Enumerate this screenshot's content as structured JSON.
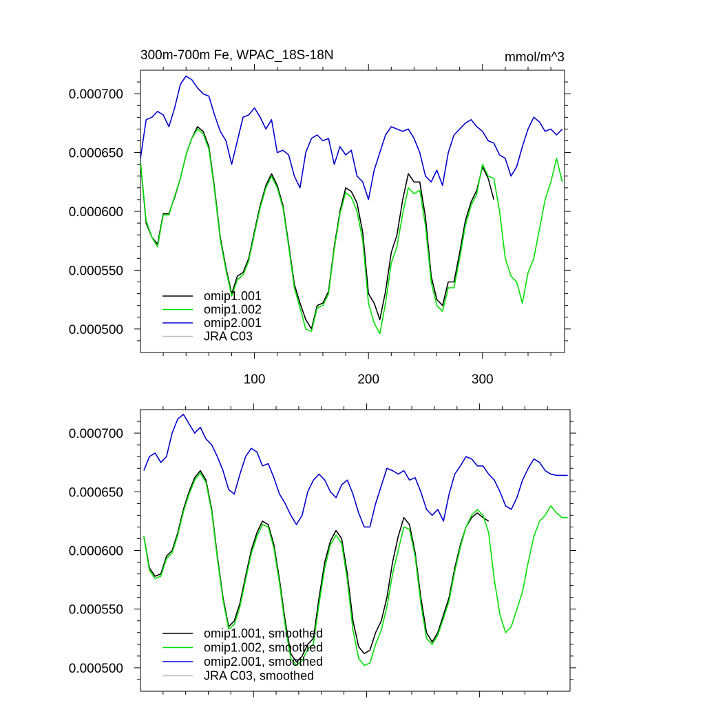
{
  "chart_data": [
    {
      "type": "line",
      "title": "300m-700m Fe, WPAC_18S-18N",
      "subtitle": "",
      "units": "mmol/m^3",
      "xlim": [
        0,
        372
      ],
      "ylim": [
        0.00048,
        0.00072
      ],
      "xticks": [
        100,
        200,
        300
      ],
      "xticklabels": [
        "100",
        "200",
        "300"
      ],
      "yticks": [
        0.0005,
        0.00055,
        0.0006,
        0.00065,
        0.0007
      ],
      "yticklabels": [
        "0.000500",
        "0.000550",
        "0.000600",
        "0.000650",
        "0.000700"
      ],
      "legend_position": "lower-left",
      "series": [
        {
          "name": "omip1.001",
          "color": "#000000",
          "x": [
            0,
            5,
            10,
            15,
            20,
            25,
            30,
            35,
            40,
            45,
            50,
            55,
            60,
            65,
            70,
            75,
            80,
            85,
            90,
            95,
            100,
            105,
            110,
            115,
            120,
            125,
            130,
            135,
            140,
            145,
            150,
            155,
            160,
            165,
            170,
            175,
            180,
            185,
            190,
            195,
            200,
            205,
            210,
            215,
            220,
            225,
            230,
            235,
            240,
            245,
            250,
            255,
            260,
            265,
            270,
            275,
            280,
            285,
            290,
            295,
            300,
            305,
            310
          ],
          "y": [
            0.000642,
            0.00059,
            0.000578,
            0.000572,
            0.000598,
            0.000598,
            0.000612,
            0.000628,
            0.000648,
            0.000662,
            0.000672,
            0.000668,
            0.000655,
            0.00062,
            0.000578,
            0.000552,
            0.00053,
            0.000545,
            0.000548,
            0.00056,
            0.000583,
            0.000605,
            0.000622,
            0.000632,
            0.000622,
            0.000605,
            0.000572,
            0.000538,
            0.000522,
            0.000508,
            0.0005,
            0.00052,
            0.000522,
            0.000532,
            0.00057,
            0.0006,
            0.00062,
            0.000617,
            0.000607,
            0.000582,
            0.00053,
            0.000522,
            0.000508,
            0.000532,
            0.000565,
            0.00058,
            0.00061,
            0.000632,
            0.000625,
            0.000625,
            0.000595,
            0.000545,
            0.000525,
            0.00052,
            0.00054,
            0.00054,
            0.000565,
            0.000592,
            0.000608,
            0.000618,
            0.000638,
            0.000628,
            0.00061
          ]
        },
        {
          "name": "omip1.002",
          "color": "#00e000",
          "x": [
            0,
            5,
            10,
            15,
            20,
            25,
            30,
            35,
            40,
            45,
            50,
            55,
            60,
            65,
            70,
            75,
            80,
            85,
            90,
            95,
            100,
            105,
            110,
            115,
            120,
            125,
            130,
            135,
            140,
            145,
            150,
            155,
            160,
            165,
            170,
            175,
            180,
            185,
            190,
            195,
            200,
            205,
            210,
            215,
            220,
            225,
            230,
            235,
            240,
            245,
            250,
            255,
            260,
            265,
            270,
            275,
            280,
            285,
            290,
            295,
            300,
            305,
            310,
            315,
            320,
            325,
            330,
            335,
            340,
            345,
            350,
            355,
            360,
            365,
            370
          ],
          "y": [
            0.000642,
            0.000592,
            0.000578,
            0.00057,
            0.000597,
            0.000597,
            0.000613,
            0.000628,
            0.000648,
            0.000662,
            0.00067,
            0.000666,
            0.000653,
            0.000618,
            0.000576,
            0.00055,
            0.000528,
            0.000542,
            0.000546,
            0.000558,
            0.000581,
            0.000603,
            0.00062,
            0.00063,
            0.00062,
            0.000603,
            0.00057,
            0.000535,
            0.000518,
            0.0005,
            0.000498,
            0.000518,
            0.00052,
            0.00053,
            0.000568,
            0.000598,
            0.000616,
            0.000612,
            0.0006,
            0.000575,
            0.000522,
            0.000505,
            0.000496,
            0.000522,
            0.000556,
            0.00057,
            0.000598,
            0.00062,
            0.000615,
            0.000618,
            0.000588,
            0.00054,
            0.00052,
            0.000515,
            0.000535,
            0.000535,
            0.00056,
            0.000588,
            0.000605,
            0.000615,
            0.00064,
            0.00063,
            0.000628,
            0.0006,
            0.00056,
            0.000545,
            0.00054,
            0.000522,
            0.000548,
            0.00056,
            0.000585,
            0.00061,
            0.000625,
            0.000645,
            0.000625
          ]
        },
        {
          "name": "omip2.001",
          "color": "#0000d0",
          "x": [
            0,
            5,
            10,
            15,
            20,
            25,
            30,
            35,
            40,
            45,
            50,
            55,
            60,
            65,
            70,
            75,
            80,
            85,
            90,
            95,
            100,
            105,
            110,
            115,
            120,
            125,
            130,
            135,
            140,
            145,
            150,
            155,
            160,
            165,
            170,
            175,
            180,
            185,
            190,
            195,
            200,
            205,
            210,
            215,
            220,
            225,
            230,
            235,
            240,
            245,
            250,
            255,
            260,
            265,
            270,
            275,
            280,
            285,
            290,
            295,
            300,
            305,
            310,
            315,
            320,
            325,
            330,
            335,
            340,
            345,
            350,
            355,
            360,
            365,
            370
          ],
          "y": [
            0.000645,
            0.000678,
            0.00068,
            0.000685,
            0.000682,
            0.000672,
            0.000688,
            0.000708,
            0.000715,
            0.000712,
            0.000705,
            0.0007,
            0.000698,
            0.000682,
            0.000668,
            0.00066,
            0.00064,
            0.00066,
            0.00068,
            0.000682,
            0.000688,
            0.00068,
            0.00067,
            0.000678,
            0.00065,
            0.000652,
            0.000648,
            0.00063,
            0.00062,
            0.00065,
            0.000662,
            0.000665,
            0.00066,
            0.000662,
            0.00064,
            0.000655,
            0.000648,
            0.000652,
            0.00063,
            0.000625,
            0.00061,
            0.000635,
            0.00065,
            0.000665,
            0.000672,
            0.00067,
            0.000668,
            0.00067,
            0.000662,
            0.00065,
            0.00063,
            0.000625,
            0.000635,
            0.000622,
            0.00065,
            0.000665,
            0.00067,
            0.000675,
            0.000678,
            0.000672,
            0.000668,
            0.00066,
            0.000658,
            0.000648,
            0.000645,
            0.00063,
            0.000638,
            0.000655,
            0.00067,
            0.00068,
            0.000676,
            0.000668,
            0.00067,
            0.000665,
            0.00067
          ]
        },
        {
          "name": "JRA C03",
          "color": "#bbbbbb",
          "x": [],
          "y": []
        }
      ]
    },
    {
      "type": "line",
      "title": "",
      "subtitle": "",
      "units": "",
      "xlim": [
        0,
        380
      ],
      "ylim": [
        0.00048,
        0.00072
      ],
      "xticks": [
        100,
        200,
        300
      ],
      "xticklabels": [
        "",
        "",
        ""
      ],
      "yticks": [
        0.0005,
        0.00055,
        0.0006,
        0.00065,
        0.0007
      ],
      "yticklabels": [
        "0.000500",
        "0.000550",
        "0.000600",
        "0.000650",
        "0.000700"
      ],
      "legend_position": "lower-left",
      "series": [
        {
          "name": "omip1.001, smoothed",
          "color": "#000000",
          "x": [
            3,
            8,
            13,
            18,
            23,
            28,
            33,
            38,
            43,
            48,
            53,
            58,
            63,
            68,
            73,
            78,
            83,
            88,
            93,
            98,
            103,
            108,
            113,
            118,
            123,
            128,
            133,
            138,
            143,
            148,
            153,
            158,
            163,
            168,
            173,
            178,
            183,
            188,
            193,
            198,
            203,
            208,
            213,
            218,
            223,
            228,
            233,
            238,
            243,
            248,
            253,
            258,
            263,
            268,
            273,
            278,
            283,
            288,
            293,
            298,
            303,
            308
          ],
          "y": [
            0.000612,
            0.000585,
            0.000578,
            0.00058,
            0.000595,
            0.0006,
            0.000615,
            0.000635,
            0.00065,
            0.000662,
            0.000668,
            0.00066,
            0.000635,
            0.000595,
            0.00056,
            0.000535,
            0.00054,
            0.000555,
            0.000578,
            0.0006,
            0.000615,
            0.000625,
            0.000622,
            0.000605,
            0.000575,
            0.00054,
            0.000512,
            0.000505,
            0.00051,
            0.00052,
            0.000525,
            0.00056,
            0.00059,
            0.000608,
            0.000617,
            0.00061,
            0.00058,
            0.00054,
            0.000518,
            0.000512,
            0.000515,
            0.00053,
            0.00054,
            0.00056,
            0.00059,
            0.000612,
            0.000628,
            0.000622,
            0.000598,
            0.00056,
            0.00053,
            0.000522,
            0.00053,
            0.000545,
            0.00056,
            0.000585,
            0.000605,
            0.00062,
            0.000628,
            0.000632,
            0.000628,
            0.000625
          ]
        },
        {
          "name": "omip1.002, smoothed",
          "color": "#00e000",
          "x": [
            3,
            8,
            13,
            18,
            23,
            28,
            33,
            38,
            43,
            48,
            53,
            58,
            63,
            68,
            73,
            78,
            83,
            88,
            93,
            98,
            103,
            108,
            113,
            118,
            123,
            128,
            133,
            138,
            143,
            148,
            153,
            158,
            163,
            168,
            173,
            178,
            183,
            188,
            193,
            198,
            203,
            208,
            213,
            218,
            223,
            228,
            233,
            238,
            243,
            248,
            253,
            258,
            263,
            268,
            273,
            278,
            283,
            288,
            293,
            298,
            303,
            308,
            313,
            318,
            323,
            328,
            333,
            338,
            343,
            348,
            353,
            358,
            363,
            368,
            373,
            378
          ],
          "y": [
            0.000612,
            0.000583,
            0.000576,
            0.000578,
            0.000593,
            0.000598,
            0.000613,
            0.000633,
            0.000648,
            0.00066,
            0.000666,
            0.000658,
            0.000633,
            0.000593,
            0.000558,
            0.000533,
            0.000537,
            0.000552,
            0.000575,
            0.000597,
            0.000612,
            0.000622,
            0.00062,
            0.000602,
            0.000572,
            0.000536,
            0.000508,
            0.000502,
            0.000506,
            0.000516,
            0.00052,
            0.000555,
            0.000585,
            0.000605,
            0.000613,
            0.000606,
            0.000575,
            0.000532,
            0.000508,
            0.000502,
            0.000504,
            0.00052,
            0.000532,
            0.000552,
            0.00058,
            0.0006,
            0.00062,
            0.000618,
            0.000595,
            0.000555,
            0.000525,
            0.00052,
            0.000528,
            0.000542,
            0.000557,
            0.000582,
            0.000603,
            0.00062,
            0.00063,
            0.000635,
            0.00063,
            0.000615,
            0.000575,
            0.000545,
            0.00053,
            0.000535,
            0.00055,
            0.000565,
            0.00059,
            0.000612,
            0.000625,
            0.00063,
            0.000638,
            0.000632,
            0.000628,
            0.000628
          ]
        },
        {
          "name": "omip2.001, smoothed",
          "color": "#0000d0",
          "x": [
            3,
            8,
            13,
            18,
            23,
            28,
            33,
            38,
            43,
            48,
            53,
            58,
            63,
            68,
            73,
            78,
            83,
            88,
            93,
            98,
            103,
            108,
            113,
            118,
            123,
            128,
            133,
            138,
            143,
            148,
            153,
            158,
            163,
            168,
            173,
            178,
            183,
            188,
            193,
            198,
            203,
            208,
            213,
            218,
            223,
            228,
            233,
            238,
            243,
            248,
            253,
            258,
            263,
            268,
            273,
            278,
            283,
            288,
            293,
            298,
            303,
            308,
            313,
            318,
            323,
            328,
            333,
            338,
            343,
            348,
            353,
            358,
            363,
            368,
            373,
            378
          ],
          "y": [
            0.000668,
            0.00068,
            0.000683,
            0.000675,
            0.00068,
            0.0007,
            0.000712,
            0.000716,
            0.000708,
            0.0007,
            0.000705,
            0.000695,
            0.00069,
            0.00068,
            0.000668,
            0.000652,
            0.000648,
            0.000665,
            0.00068,
            0.000687,
            0.000684,
            0.000672,
            0.000674,
            0.000662,
            0.000648,
            0.00064,
            0.00063,
            0.000622,
            0.00063,
            0.00065,
            0.00066,
            0.000665,
            0.00066,
            0.00065,
            0.000645,
            0.000656,
            0.00066,
            0.000648,
            0.000632,
            0.00062,
            0.00062,
            0.00064,
            0.000655,
            0.00067,
            0.000668,
            0.000665,
            0.000668,
            0.00066,
            0.000662,
            0.00065,
            0.000635,
            0.00063,
            0.000635,
            0.000625,
            0.000648,
            0.000665,
            0.000672,
            0.00068,
            0.000678,
            0.000672,
            0.000672,
            0.000665,
            0.00066,
            0.00065,
            0.000638,
            0.000635,
            0.000645,
            0.00066,
            0.00067,
            0.000678,
            0.000675,
            0.000668,
            0.000665,
            0.000664,
            0.000664,
            0.000664
          ]
        },
        {
          "name": "JRA C03, smoothed",
          "color": "#bbbbbb",
          "x": [],
          "y": []
        }
      ]
    }
  ]
}
